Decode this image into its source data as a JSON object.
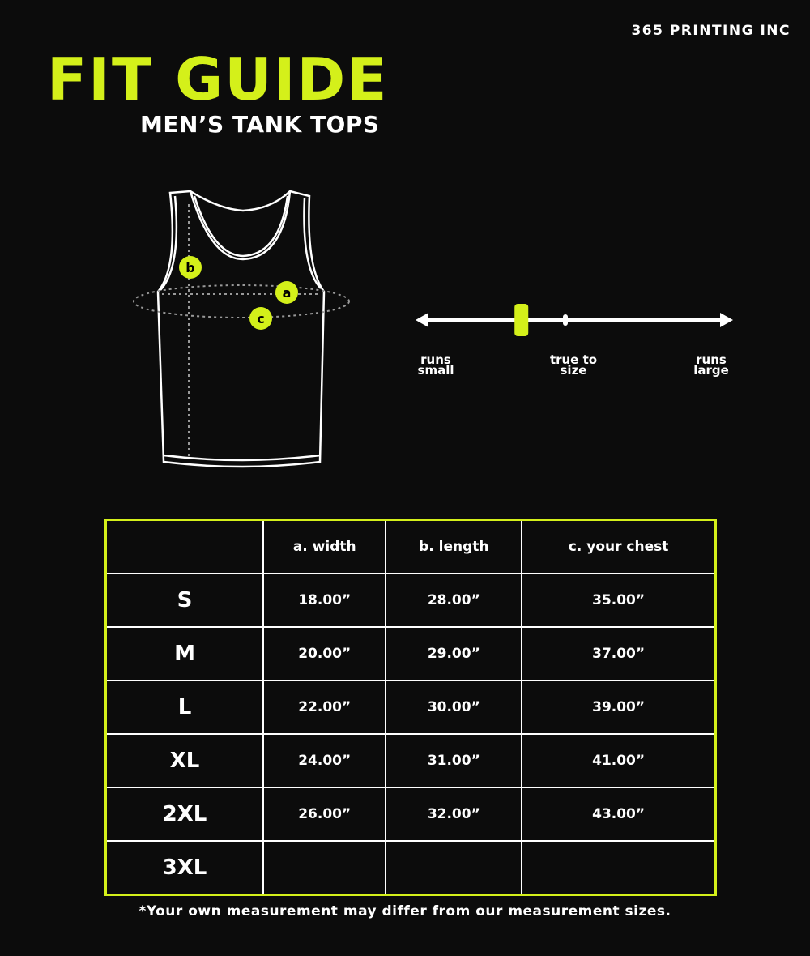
{
  "brand": "365 PRINTING INC",
  "title": "FIT GUIDE",
  "subtitle": "MEN’S TANK TOPS",
  "colors": {
    "accent": "#d4f01a",
    "background": "#0c0c0c",
    "text": "#ffffff"
  },
  "diagram": {
    "markers": [
      "a",
      "b",
      "c"
    ]
  },
  "fit_scale": {
    "labels": {
      "small": "runs small",
      "true": "true to size",
      "large": "runs large"
    },
    "position_fraction": 0.33
  },
  "table": {
    "headers": [
      "",
      "a. width",
      "b. length",
      "c. your chest"
    ],
    "rows": [
      [
        "S",
        "18.00”",
        "28.00”",
        "35.00”"
      ],
      [
        "M",
        "20.00”",
        "29.00”",
        "37.00”"
      ],
      [
        "L",
        "22.00”",
        "30.00”",
        "39.00”"
      ],
      [
        "XL",
        "24.00”",
        "31.00”",
        "41.00”"
      ],
      [
        "2XL",
        "26.00”",
        "32.00”",
        "43.00”"
      ],
      [
        "3XL",
        "",
        "",
        ""
      ]
    ]
  },
  "note": "*Your own measurement may differ from our measurement sizes."
}
